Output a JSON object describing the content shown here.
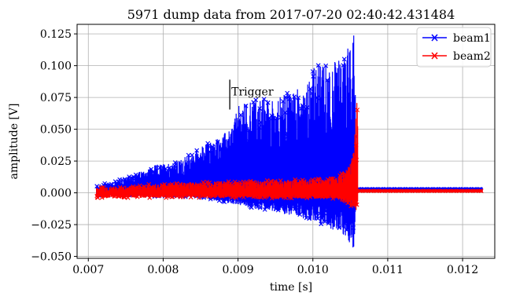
{
  "chart_data": {
    "type": "line",
    "title": "5971 dump data from 2017-07-20 02:40:42.431484",
    "xlabel": "time [s]",
    "ylabel": "amplitude [V]",
    "xlim": [
      0.00685,
      0.01243
    ],
    "ylim": [
      -0.0515,
      0.1325
    ],
    "x_ticks": [
      0.007,
      0.008,
      0.009,
      0.01,
      0.011,
      0.012
    ],
    "x_tick_labels": [
      "0.007",
      "0.008",
      "0.009",
      "0.010",
      "0.011",
      "0.012"
    ],
    "y_ticks": [
      -0.05,
      -0.025,
      0,
      0.025,
      0.05,
      0.075,
      0.1,
      0.125
    ],
    "y_tick_labels": [
      "−0.050",
      "−0.025",
      "0.000",
      "0.025",
      "0.050",
      "0.075",
      "0.100",
      "0.125"
    ],
    "grid": true,
    "legend_position": "top-right",
    "annotation": {
      "text": "Trigger",
      "x": 0.00889,
      "y_from": 0.0655,
      "y_to": 0.089
    },
    "series": [
      {
        "name": "beam1",
        "color": "#0000ff",
        "marker": "x",
        "x_range": [
          0.00711,
          0.01227
        ],
        "burst_end": 0.01058,
        "upper_envelope": [
          [
            0.00711,
            0.006
          ],
          [
            0.0075,
            0.012
          ],
          [
            0.0079,
            0.022
          ],
          [
            0.0082,
            0.025
          ],
          [
            0.0085,
            0.036
          ],
          [
            0.0089,
            0.05
          ],
          [
            0.009,
            0.068
          ],
          [
            0.0092,
            0.075
          ],
          [
            0.0095,
            0.074
          ],
          [
            0.0097,
            0.08
          ],
          [
            0.0099,
            0.086
          ],
          [
            0.01,
            0.1
          ],
          [
            0.0102,
            0.102
          ],
          [
            0.0104,
            0.106
          ],
          [
            0.01056,
            0.128
          ],
          [
            0.01058,
            0.002
          ]
        ],
        "lower_envelope": [
          [
            0.00711,
            -0.002
          ],
          [
            0.008,
            -0.003
          ],
          [
            0.0085,
            -0.004
          ],
          [
            0.009,
            -0.01
          ],
          [
            0.0095,
            -0.015
          ],
          [
            0.01,
            -0.022
          ],
          [
            0.0102,
            -0.027
          ],
          [
            0.0104,
            -0.034
          ],
          [
            0.01055,
            -0.045
          ],
          [
            0.01058,
            -0.002
          ]
        ],
        "tail_level": 0.003
      },
      {
        "name": "beam2",
        "color": "#ff0000",
        "marker": "x",
        "x_range": [
          0.00711,
          0.01227
        ],
        "burst_end": 0.0106,
        "upper_envelope": [
          [
            0.00711,
            0.004
          ],
          [
            0.0076,
            0.006
          ],
          [
            0.0081,
            0.008
          ],
          [
            0.0088,
            0.009
          ],
          [
            0.0095,
            0.01
          ],
          [
            0.01,
            0.011
          ],
          [
            0.0103,
            0.012
          ],
          [
            0.01045,
            0.02
          ],
          [
            0.01055,
            0.035
          ],
          [
            0.0106,
            0.09
          ],
          [
            0.01062,
            0.002
          ]
        ],
        "lower_envelope": [
          [
            0.00711,
            -0.004
          ],
          [
            0.009,
            -0.004
          ],
          [
            0.0103,
            -0.005
          ],
          [
            0.01055,
            -0.012
          ],
          [
            0.0106,
            -0.016
          ],
          [
            0.01062,
            -0.002
          ]
        ],
        "tail_level": 0.0015
      }
    ]
  }
}
